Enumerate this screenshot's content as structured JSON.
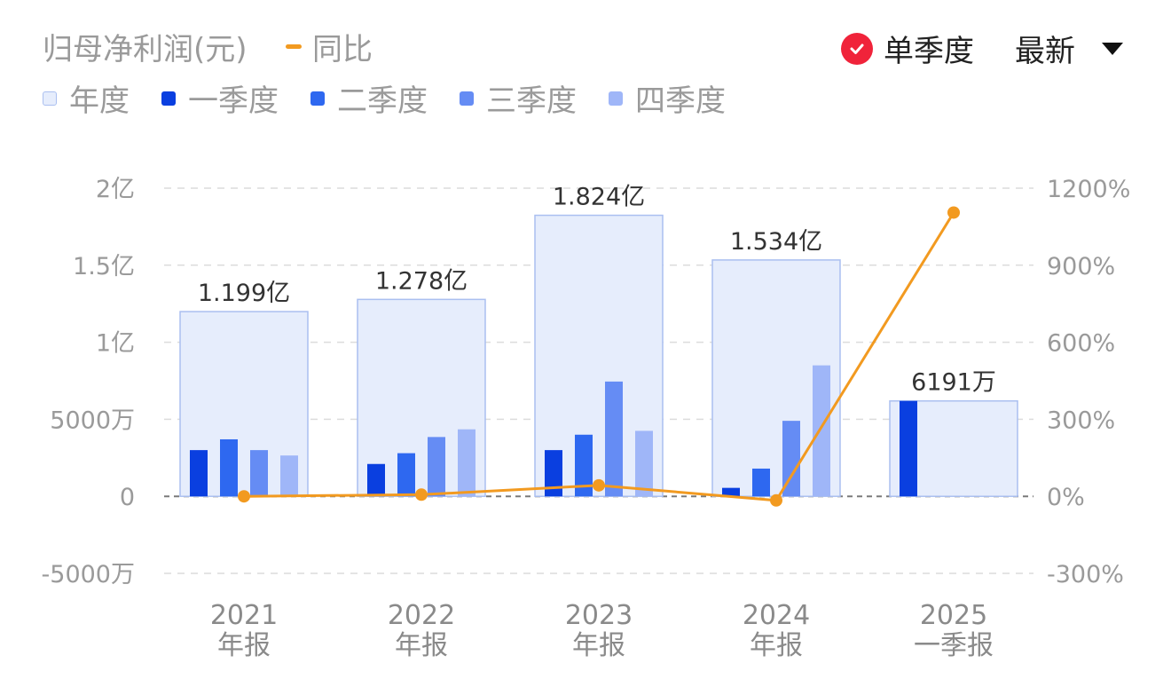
{
  "header": {
    "title": "归母净利润(元)",
    "yoy_label": "同比",
    "toggle_label": "单季度",
    "toggle_checked": true,
    "dropdown_label": "最新"
  },
  "legend": [
    {
      "label": "年度",
      "color": "#e6edfc",
      "border": "#aabff0"
    },
    {
      "label": "一季度",
      "color": "#0a3fe0"
    },
    {
      "label": "二季度",
      "color": "#2e68f0"
    },
    {
      "label": "三季度",
      "color": "#658cf4"
    },
    {
      "label": "四季度",
      "color": "#9fb6f8"
    }
  ],
  "chart_data": {
    "type": "bar",
    "categories": [
      {
        "year": "2021",
        "period": "年报"
      },
      {
        "year": "2022",
        "period": "年报"
      },
      {
        "year": "2023",
        "period": "年报"
      },
      {
        "year": "2024",
        "period": "年报"
      },
      {
        "year": "2025",
        "period": "一季报"
      }
    ],
    "annual": {
      "values": [
        119900000,
        127800000,
        182400000,
        153400000,
        61910000
      ],
      "labels": [
        "1.199亿",
        "1.278亿",
        "1.824亿",
        "1.534亿",
        "6191万"
      ]
    },
    "quarters": [
      {
        "name": "一季度",
        "values": [
          30000000,
          21000000,
          30000000,
          5500000,
          61910000
        ]
      },
      {
        "name": "二季度",
        "values": [
          37000000,
          28000000,
          40000000,
          18000000,
          null
        ]
      },
      {
        "name": "三季度",
        "values": [
          30000000,
          38500000,
          74500000,
          49000000,
          null
        ]
      },
      {
        "name": "四季度",
        "values": [
          26500000,
          43500000,
          42500000,
          85000000,
          null
        ]
      }
    ],
    "yoy": {
      "name": "同比",
      "color": "#f29a20",
      "values": [
        0,
        6.6,
        42.7,
        -15.9,
        1105
      ]
    },
    "y_left": {
      "ticks": [
        -50000000,
        0,
        50000000,
        100000000,
        150000000,
        200000000
      ],
      "tick_labels": [
        "-5000万",
        "0",
        "5000万",
        "1亿",
        "1.5亿",
        "2亿"
      ],
      "range": [
        -50000000,
        200000000
      ]
    },
    "y_right": {
      "ticks": [
        -300,
        0,
        300,
        600,
        900,
        1200
      ],
      "tick_labels": [
        "-300%",
        "0%",
        "300%",
        "600%",
        "900%",
        "1200%"
      ],
      "range": [
        -300,
        1200
      ]
    },
    "grid": true
  }
}
